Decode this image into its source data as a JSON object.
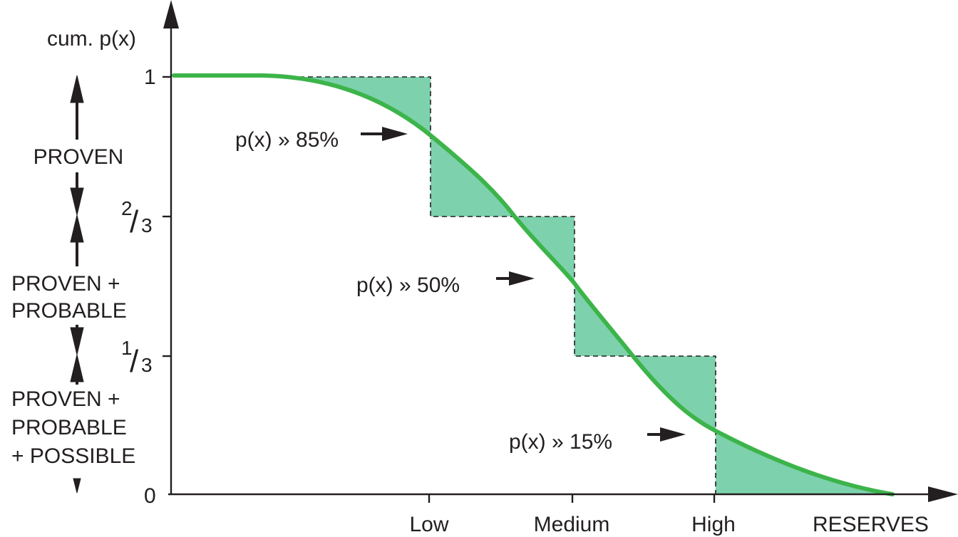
{
  "y_axis": {
    "title": "cum. p(x)",
    "ticks": {
      "one": "1",
      "two_thirds": {
        "numerator": "2",
        "denominator": "3"
      },
      "one_third": {
        "numerator": "1",
        "denominator": "3"
      },
      "zero": "0"
    }
  },
  "x_axis": {
    "title": "RESERVES",
    "ticks": [
      "Low",
      "Medium",
      "High"
    ]
  },
  "categories": {
    "proven": [
      "PROVEN"
    ],
    "proven_probable": [
      "PROVEN +",
      "PROBABLE"
    ],
    "proven_probable_possible": [
      "PROVEN +",
      "PROBABLE",
      "+ POSSIBLE"
    ]
  },
  "annotations": [
    {
      "text": "p(x) » 85%"
    },
    {
      "text": "p(x) » 50%"
    },
    {
      "text": "p(x) » 15%"
    }
  ],
  "colors": {
    "curve": "#3cb44a",
    "fill": "#7dd1ac",
    "ink": "#231f20"
  }
}
